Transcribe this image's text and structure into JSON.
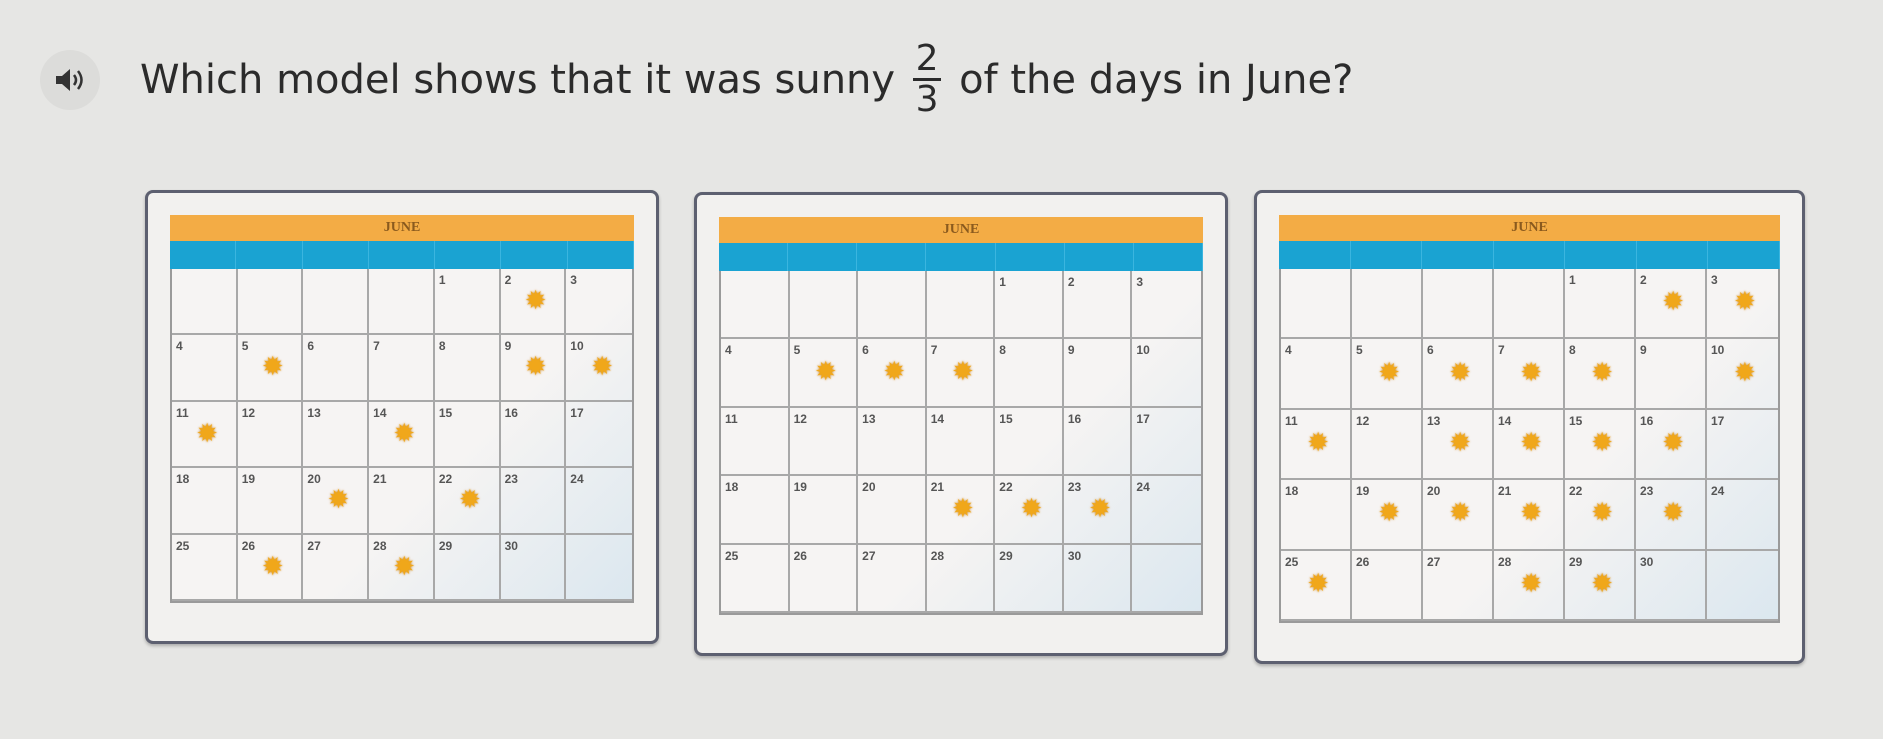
{
  "question": {
    "audio_icon": "speaker-icon",
    "text_before": "Which model shows that it was sunny",
    "fraction": {
      "numerator": "2",
      "denominator": "3"
    },
    "text_after": "of the days in June?"
  },
  "options": [
    {
      "month": "JUNE",
      "start_weekday": 4,
      "days_in_month": 30,
      "sunny_days": [
        2,
        5,
        9,
        10,
        11,
        14,
        20,
        22,
        26,
        28
      ]
    },
    {
      "month": "JUNE",
      "start_weekday": 4,
      "days_in_month": 30,
      "sunny_days": [
        5,
        6,
        7,
        21,
        22,
        23
      ]
    },
    {
      "month": "JUNE",
      "start_weekday": 4,
      "days_in_month": 30,
      "sunny_days": [
        2,
        3,
        5,
        6,
        7,
        8,
        10,
        11,
        13,
        14,
        15,
        16,
        19,
        20,
        21,
        22,
        23,
        25,
        28,
        29
      ]
    }
  ],
  "colors": {
    "month_bar": "#f3ac45",
    "weekday_bar": "#1aa3d2",
    "sun": "#f0a71a"
  }
}
